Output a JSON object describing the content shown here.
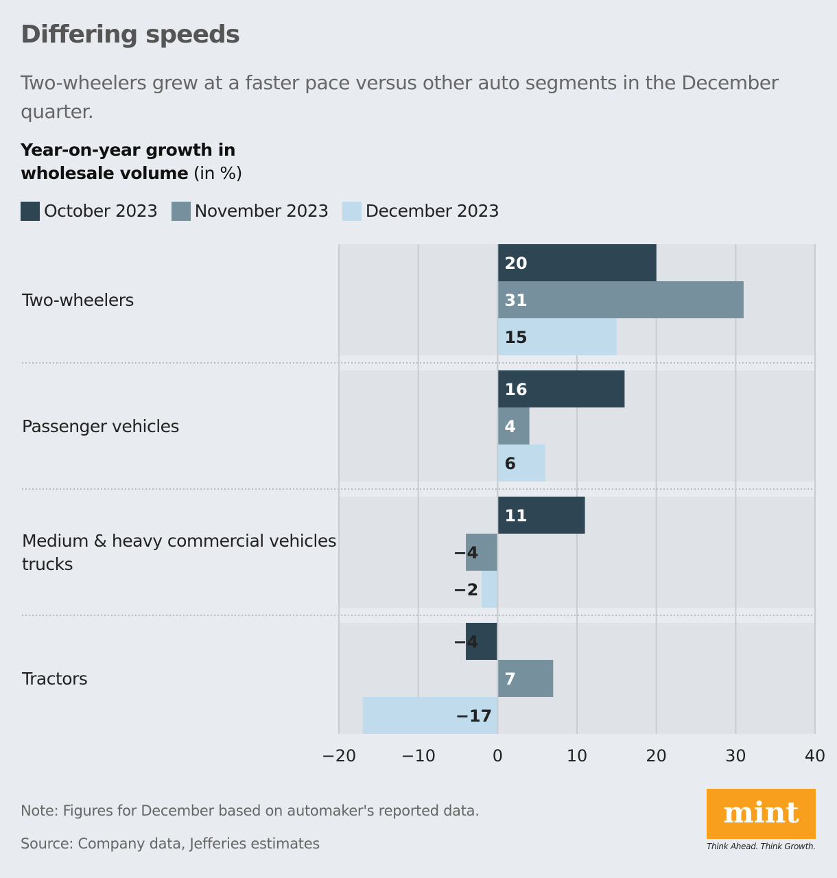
{
  "title": "Differing speeds",
  "subtitle": "Two-wheelers grew at a faster pace versus other auto segments in the December quarter.",
  "heading": {
    "bold": "Year-on-year growth in wholesale volume",
    "unit": "(in %)"
  },
  "note": "Note: Figures for December based on automaker's reported data.",
  "source": "Source: Company data, Jefferies estimates",
  "logo": {
    "text": "mint",
    "tagline": "Think Ahead. Think Growth.",
    "color": "#f8a01e"
  },
  "chart_data": {
    "type": "bar",
    "orientation": "horizontal",
    "categories": [
      "Two-wheelers",
      "Passenger vehicles",
      "Medium & heavy commercial vehicles trucks",
      "Tractors"
    ],
    "series": [
      {
        "name": "October 2023",
        "color": "#2e4654",
        "values": [
          20,
          16,
          11,
          -4
        ]
      },
      {
        "name": "November 2023",
        "color": "#76909e",
        "values": [
          31,
          4,
          -4,
          7
        ]
      },
      {
        "name": "December 2023",
        "color": "#c0dcec",
        "values": [
          15,
          6,
          -2,
          -17
        ]
      }
    ],
    "xlim": [
      -20,
      40
    ],
    "xticks": [
      "−20",
      "−10",
      "0",
      "10",
      "20",
      "30",
      "40"
    ],
    "xtick_values": [
      -20,
      -10,
      0,
      10,
      20,
      30,
      40
    ],
    "grid": true,
    "legend": "top-left"
  }
}
